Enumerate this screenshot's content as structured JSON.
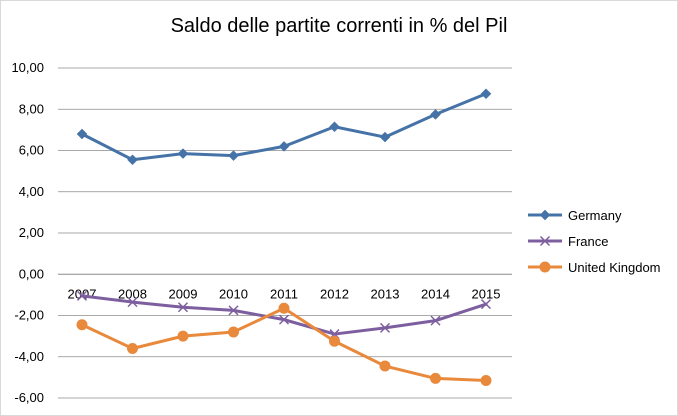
{
  "chart_data": {
    "type": "line",
    "title": "Saldo delle partite correnti in % del Pil",
    "xlabel": "",
    "ylabel": "",
    "categories": [
      "2007",
      "2008",
      "2009",
      "2010",
      "2011",
      "2012",
      "2013",
      "2014",
      "2015"
    ],
    "y_ticks": [
      "10,00",
      "8,00",
      "6,00",
      "4,00",
      "2,00",
      "0,00",
      "-2,00",
      "-4,00",
      "-6,00"
    ],
    "ylim": [
      -6,
      10
    ],
    "grid": "horizontal",
    "legend_position": "right",
    "series": [
      {
        "name": "Germany",
        "color": "#4572A7",
        "marker": "diamond",
        "values": [
          6.8,
          5.55,
          5.85,
          5.75,
          6.2,
          7.15,
          6.65,
          7.75,
          8.75
        ]
      },
      {
        "name": "France",
        "color": "#7D5FA0",
        "marker": "x",
        "values": [
          -1.05,
          -1.35,
          -1.6,
          -1.75,
          -2.2,
          -2.9,
          -2.6,
          -2.25,
          -1.45
        ]
      },
      {
        "name": "United Kingdom",
        "color": "#E8893C",
        "marker": "circle",
        "values": [
          -2.45,
          -3.6,
          -3.0,
          -2.8,
          -1.65,
          -3.25,
          -4.45,
          -5.05,
          -5.15
        ]
      }
    ]
  }
}
